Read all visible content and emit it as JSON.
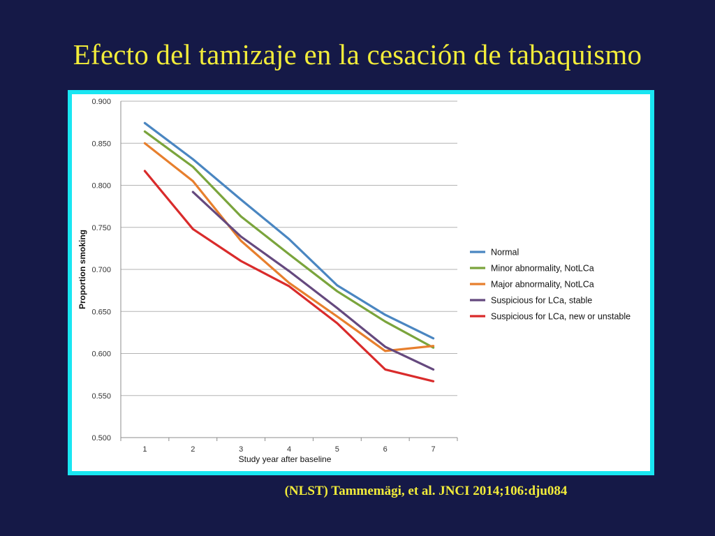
{
  "slide": {
    "title": "Efecto del tamizaje en la cesación de tabaquismo",
    "citation": "(NLST) Tammemägi, et al. JNCI 2014;106:dju084",
    "background_color": "#151947",
    "title_color": "#f2ec3a",
    "frame_color": "#19e6f2"
  },
  "chart_data": {
    "type": "line",
    "title": "",
    "xlabel": "Study year after baseline",
    "ylabel": "Proportion smoking",
    "x": [
      1,
      2,
      3,
      4,
      5,
      6,
      7
    ],
    "ylim": [
      0.5,
      0.9
    ],
    "yticks": [
      "0.500",
      "0.550",
      "0.600",
      "0.650",
      "0.700",
      "0.750",
      "0.800",
      "0.850",
      "0.900"
    ],
    "grid": true,
    "legend_position": "right",
    "series": [
      {
        "name": "Normal",
        "color": "#4a86c1",
        "values": [
          0.874,
          0.831,
          0.783,
          0.736,
          0.681,
          0.646,
          0.618
        ]
      },
      {
        "name": "Minor abnormality, NotLCa",
        "color": "#7aa43c",
        "values": [
          0.864,
          0.822,
          0.763,
          0.718,
          0.674,
          0.638,
          0.607
        ]
      },
      {
        "name": "Major abnormality, NotLCa",
        "color": "#e77f2d",
        "values": [
          0.85,
          0.805,
          0.734,
          0.684,
          0.644,
          0.603,
          0.609
        ]
      },
      {
        "name": "Suspicious for LCa, stable",
        "color": "#65497e",
        "values": [
          null,
          0.792,
          0.739,
          0.698,
          0.654,
          0.608,
          0.581
        ]
      },
      {
        "name": "Suspicious for LCa, new or unstable",
        "color": "#d92b2b",
        "values": [
          0.817,
          0.748,
          0.71,
          0.68,
          0.636,
          0.581,
          0.567
        ]
      }
    ]
  }
}
